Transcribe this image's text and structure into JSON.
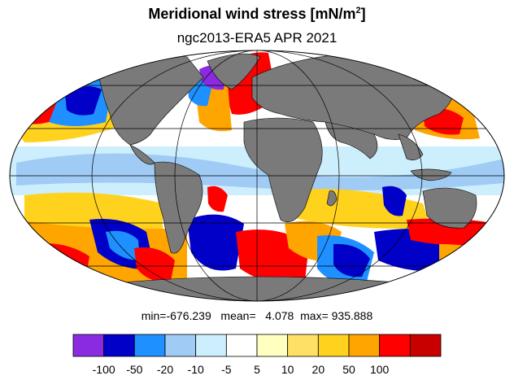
{
  "title": {
    "text": "Meridional wind stress [mN/m",
    "sup": "2",
    "close": "]"
  },
  "subtitle": "ngc2013-ERA5 APR 2021",
  "stats": {
    "min": "-676.239",
    "mean": "4.078",
    "max": "935.888"
  },
  "colorbar": {
    "colors": [
      "#8a2be2",
      "#0000c8",
      "#1e90ff",
      "#9fcbf5",
      "#cdeefc",
      "#ffffff",
      "#ffffc0",
      "#ffe066",
      "#ffd21e",
      "#ffa500",
      "#ff0000",
      "#c80000"
    ],
    "tick_labels": [
      "-100",
      "-50",
      "-20",
      "-10",
      "-5",
      "5",
      "10",
      "20",
      "50",
      "100"
    ]
  },
  "map": {
    "projection": "mollweide",
    "land_color": "#7a7a7a",
    "coastline_color": "#000000"
  }
}
